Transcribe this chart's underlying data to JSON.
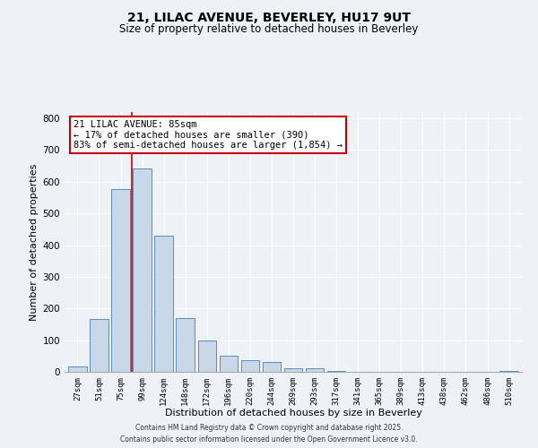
{
  "title_line1": "21, LILAC AVENUE, BEVERLEY, HU17 9UT",
  "title_line2": "Size of property relative to detached houses in Beverley",
  "xlabel": "Distribution of detached houses by size in Beverley",
  "ylabel": "Number of detached properties",
  "bar_labels": [
    "27sqm",
    "51sqm",
    "75sqm",
    "99sqm",
    "124sqm",
    "148sqm",
    "172sqm",
    "196sqm",
    "220sqm",
    "244sqm",
    "269sqm",
    "293sqm",
    "317sqm",
    "341sqm",
    "365sqm",
    "389sqm",
    "413sqm",
    "438sqm",
    "462sqm",
    "486sqm",
    "510sqm"
  ],
  "bar_values": [
    18,
    168,
    578,
    642,
    430,
    170,
    100,
    50,
    38,
    32,
    10,
    12,
    3,
    0,
    0,
    0,
    0,
    0,
    0,
    0,
    2
  ],
  "bar_color": "#c8d8e8",
  "bar_edge_color": "#5090c0",
  "vline_color": "#cc0000",
  "vline_x": 2.5,
  "annotation_title": "21 LILAC AVENUE: 85sqm",
  "annotation_line2": "← 17% of detached houses are smaller (390)",
  "annotation_line3": "83% of semi-detached houses are larger (1,854) →",
  "annotation_box_color": "#ffffff",
  "annotation_box_edge": "#cc0000",
  "ylim": [
    0,
    820
  ],
  "yticks": [
    0,
    100,
    200,
    300,
    400,
    500,
    600,
    700,
    800
  ],
  "background_color": "#eef2f7",
  "grid_color": "#ffffff",
  "footer_line1": "Contains HM Land Registry data © Crown copyright and database right 2025.",
  "footer_line2": "Contains public sector information licensed under the Open Government Licence v3.0."
}
